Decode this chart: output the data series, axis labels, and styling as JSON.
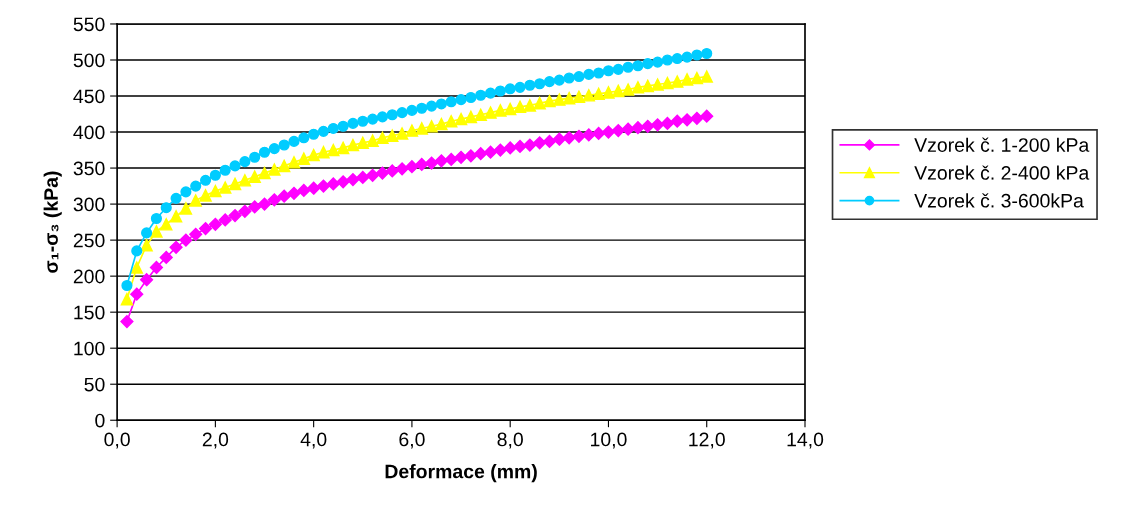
{
  "chart_data": {
    "type": "line",
    "xlabel": "Deformace (mm)",
    "ylabel": "σ₁-σ₃ (kPa)",
    "x": [
      0.2,
      0.4,
      0.6,
      0.8,
      1.0,
      1.2,
      1.4,
      1.6,
      1.8,
      2.0,
      2.2,
      2.4,
      2.6,
      2.8,
      3.0,
      3.2,
      3.4,
      3.6,
      3.8,
      4.0,
      4.2,
      4.4,
      4.6,
      4.8,
      5.0,
      5.2,
      5.4,
      5.6,
      5.8,
      6.0,
      6.2,
      6.4,
      6.6,
      6.8,
      7.0,
      7.2,
      7.4,
      7.6,
      7.8,
      8.0,
      8.2,
      8.4,
      8.6,
      8.8,
      9.0,
      9.2,
      9.4,
      9.6,
      9.8,
      10.0,
      10.2,
      10.4,
      10.6,
      10.8,
      11.0,
      11.2,
      11.4,
      11.6,
      11.8,
      12.0
    ],
    "series": [
      {
        "name": "Vzorek č. 1-200 kPa",
        "color": "#ff00ff",
        "marker": "diamond",
        "values": [
          137,
          175,
          195,
          212,
          226,
          240,
          250,
          258,
          266,
          272,
          278,
          284,
          290,
          296,
          300,
          306,
          311,
          315,
          319,
          322,
          325,
          328,
          331,
          334,
          337,
          340,
          343,
          346,
          349,
          352,
          355,
          357,
          360,
          362,
          365,
          367,
          370,
          372,
          375,
          378,
          380,
          382,
          385,
          387,
          390,
          392,
          394,
          396,
          398,
          400,
          402,
          404,
          406,
          408,
          410,
          412,
          415,
          417,
          419,
          422
        ]
      },
      {
        "name": "Vzorek č. 2-400 kPa",
        "color": "#ffff00",
        "marker": "triangle",
        "values": [
          168,
          212,
          243,
          262,
          272,
          283,
          294,
          305,
          312,
          318,
          323,
          328,
          333,
          338,
          343,
          348,
          353,
          358,
          363,
          368,
          372,
          375,
          378,
          382,
          385,
          388,
          392,
          395,
          398,
          402,
          405,
          408,
          411,
          415,
          418,
          421,
          424,
          427,
          430,
          432,
          435,
          437,
          440,
          443,
          445,
          447,
          449,
          451,
          453,
          455,
          457,
          459,
          462,
          464,
          466,
          468,
          470,
          473,
          475,
          477
        ]
      },
      {
        "name": "Vzorek č. 3-600kPa",
        "color": "#00ccff",
        "marker": "circle",
        "values": [
          187,
          235,
          260,
          280,
          295,
          308,
          317,
          325,
          333,
          340,
          347,
          353,
          359,
          365,
          372,
          377,
          382,
          387,
          392,
          397,
          401,
          405,
          408,
          412,
          415,
          418,
          421,
          424,
          427,
          430,
          433,
          436,
          439,
          442,
          445,
          448,
          451,
          454,
          457,
          460,
          462,
          465,
          467,
          470,
          472,
          475,
          477,
          480,
          482,
          485,
          487,
          490,
          492,
          495,
          497,
          500,
          502,
          504,
          507,
          509
        ]
      }
    ],
    "xlim": [
      0,
      14
    ],
    "xticks": [
      {
        "value": 0,
        "label": "0,0"
      },
      {
        "value": 2,
        "label": "2,0"
      },
      {
        "value": 4,
        "label": "4,0"
      },
      {
        "value": 6,
        "label": "6,0"
      },
      {
        "value": 8,
        "label": "8,0"
      },
      {
        "value": 10,
        "label": "10,0"
      },
      {
        "value": 12,
        "label": "12,0"
      },
      {
        "value": 14,
        "label": "14,0"
      }
    ],
    "ylim": [
      0,
      550
    ],
    "yticks": [
      0,
      50,
      100,
      150,
      200,
      250,
      300,
      350,
      400,
      450,
      500,
      550
    ],
    "grid": "y",
    "legend": "right",
    "line_style": "solid"
  }
}
